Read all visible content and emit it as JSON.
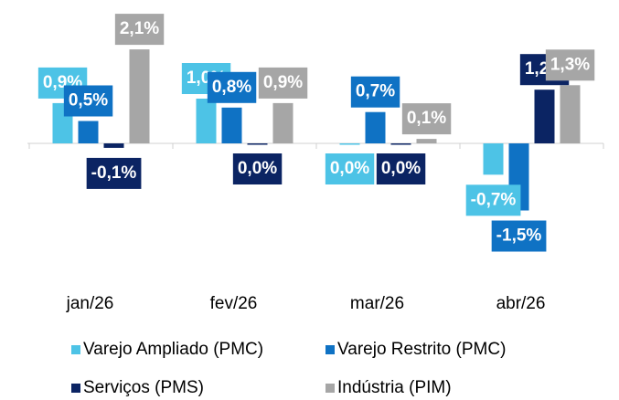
{
  "chart_data": {
    "type": "bar",
    "categories": [
      "jan/26",
      "fev/26",
      "mar/26",
      "abr/26"
    ],
    "series": [
      {
        "name": "Varejo Ampliado (PMC)",
        "color": "#4dc3e6",
        "values": [
          0.9,
          1.0,
          0.0,
          -0.7
        ],
        "value_labels": [
          "0,9%",
          "1,0%",
          "0,0%",
          "-0,7%"
        ]
      },
      {
        "name": "Varejo Restrito (PMC)",
        "color": "#0f72c4",
        "values": [
          0.5,
          0.8,
          0.7,
          -1.5
        ],
        "value_labels": [
          "0,5%",
          "0,8%",
          "0,7%",
          "-1,5%"
        ]
      },
      {
        "name": "Serviços (PMS)",
        "color": "#0b2463",
        "values": [
          -0.1,
          0.0,
          0.0,
          1.2
        ],
        "value_labels": [
          "-0,1%",
          "0,0%",
          "0,0%",
          "1,2%"
        ]
      },
      {
        "name": "Indústria (PIM)",
        "color": "#a6a6a6",
        "values": [
          2.1,
          0.9,
          0.1,
          1.3
        ],
        "value_labels": [
          "2,1%",
          "0,9%",
          "0,1%",
          "1,3%"
        ]
      }
    ]
  }
}
